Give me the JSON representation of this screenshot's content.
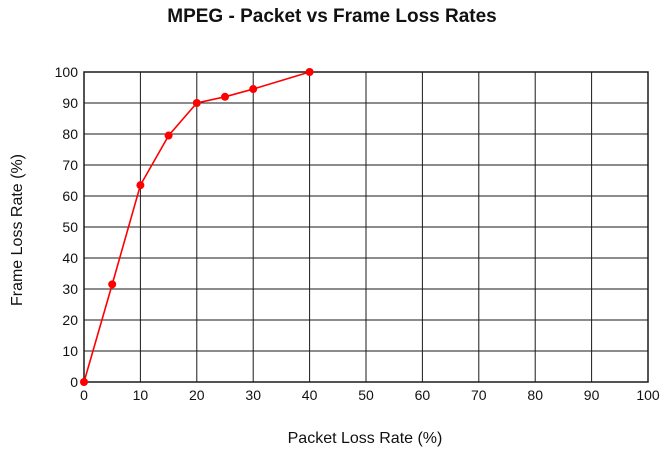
{
  "chart_data": {
    "type": "line",
    "title": "MPEG - Packet vs Frame Loss Rates",
    "xlabel": "Packet Loss Rate (%)",
    "ylabel": "Frame Loss Rate (%)",
    "xlim": [
      0,
      100
    ],
    "ylim": [
      0,
      100
    ],
    "x_ticks": [
      "0",
      "10",
      "20",
      "30",
      "40",
      "50",
      "60",
      "70",
      "80",
      "90",
      "100"
    ],
    "y_ticks": [
      "0",
      "10",
      "20",
      "30",
      "40",
      "50",
      "60",
      "70",
      "80",
      "90",
      "100"
    ],
    "grid": true,
    "legend": "none",
    "series": [
      {
        "color": "#ff0000",
        "x": [
          0,
          5,
          10,
          15,
          20,
          25,
          30,
          40
        ],
        "y": [
          0,
          31.5,
          63.5,
          79.5,
          90,
          92,
          94.5,
          100
        ]
      }
    ]
  }
}
